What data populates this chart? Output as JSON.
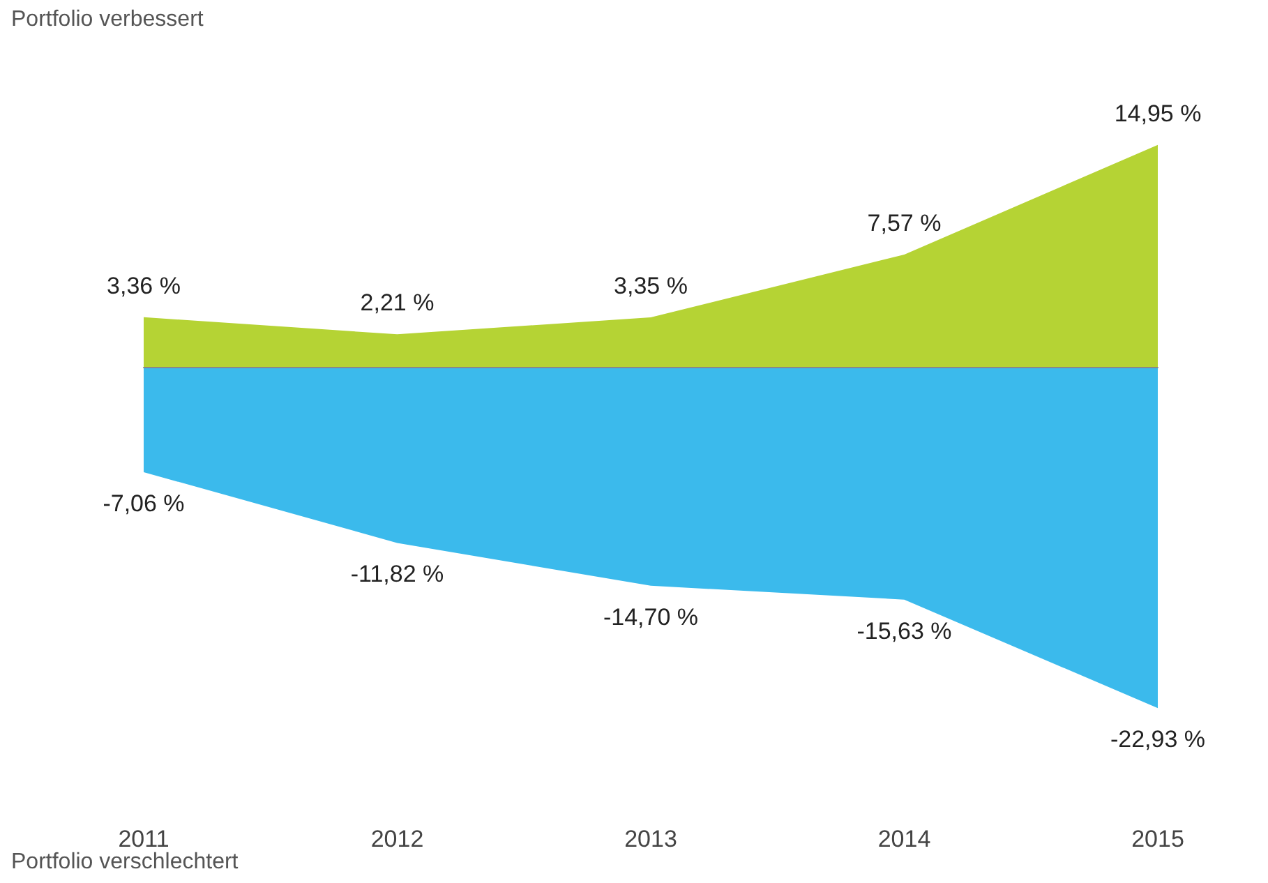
{
  "chart_data": {
    "type": "area",
    "title": "Portfolio verbessert",
    "annotations": [
      "Portfolio verschlechtert"
    ],
    "categories": [
      "2011",
      "2012",
      "2013",
      "2014",
      "2015"
    ],
    "series": [
      {
        "color": "#b5d334",
        "values": [
          3.36,
          2.21,
          3.35,
          7.57,
          14.95
        ],
        "value_labels": [
          "3,36 %",
          "2,21 %",
          "3,35 %",
          "7,57 %",
          "14,95 %"
        ]
      },
      {
        "color": "#3bbaec",
        "values": [
          -7.06,
          -11.82,
          -14.7,
          -15.63,
          -22.93
        ],
        "value_labels": [
          "-7,06 %",
          "-11,82 %",
          "-14,70 %",
          "-15,63 %",
          "-22,93 %"
        ]
      }
    ]
  }
}
